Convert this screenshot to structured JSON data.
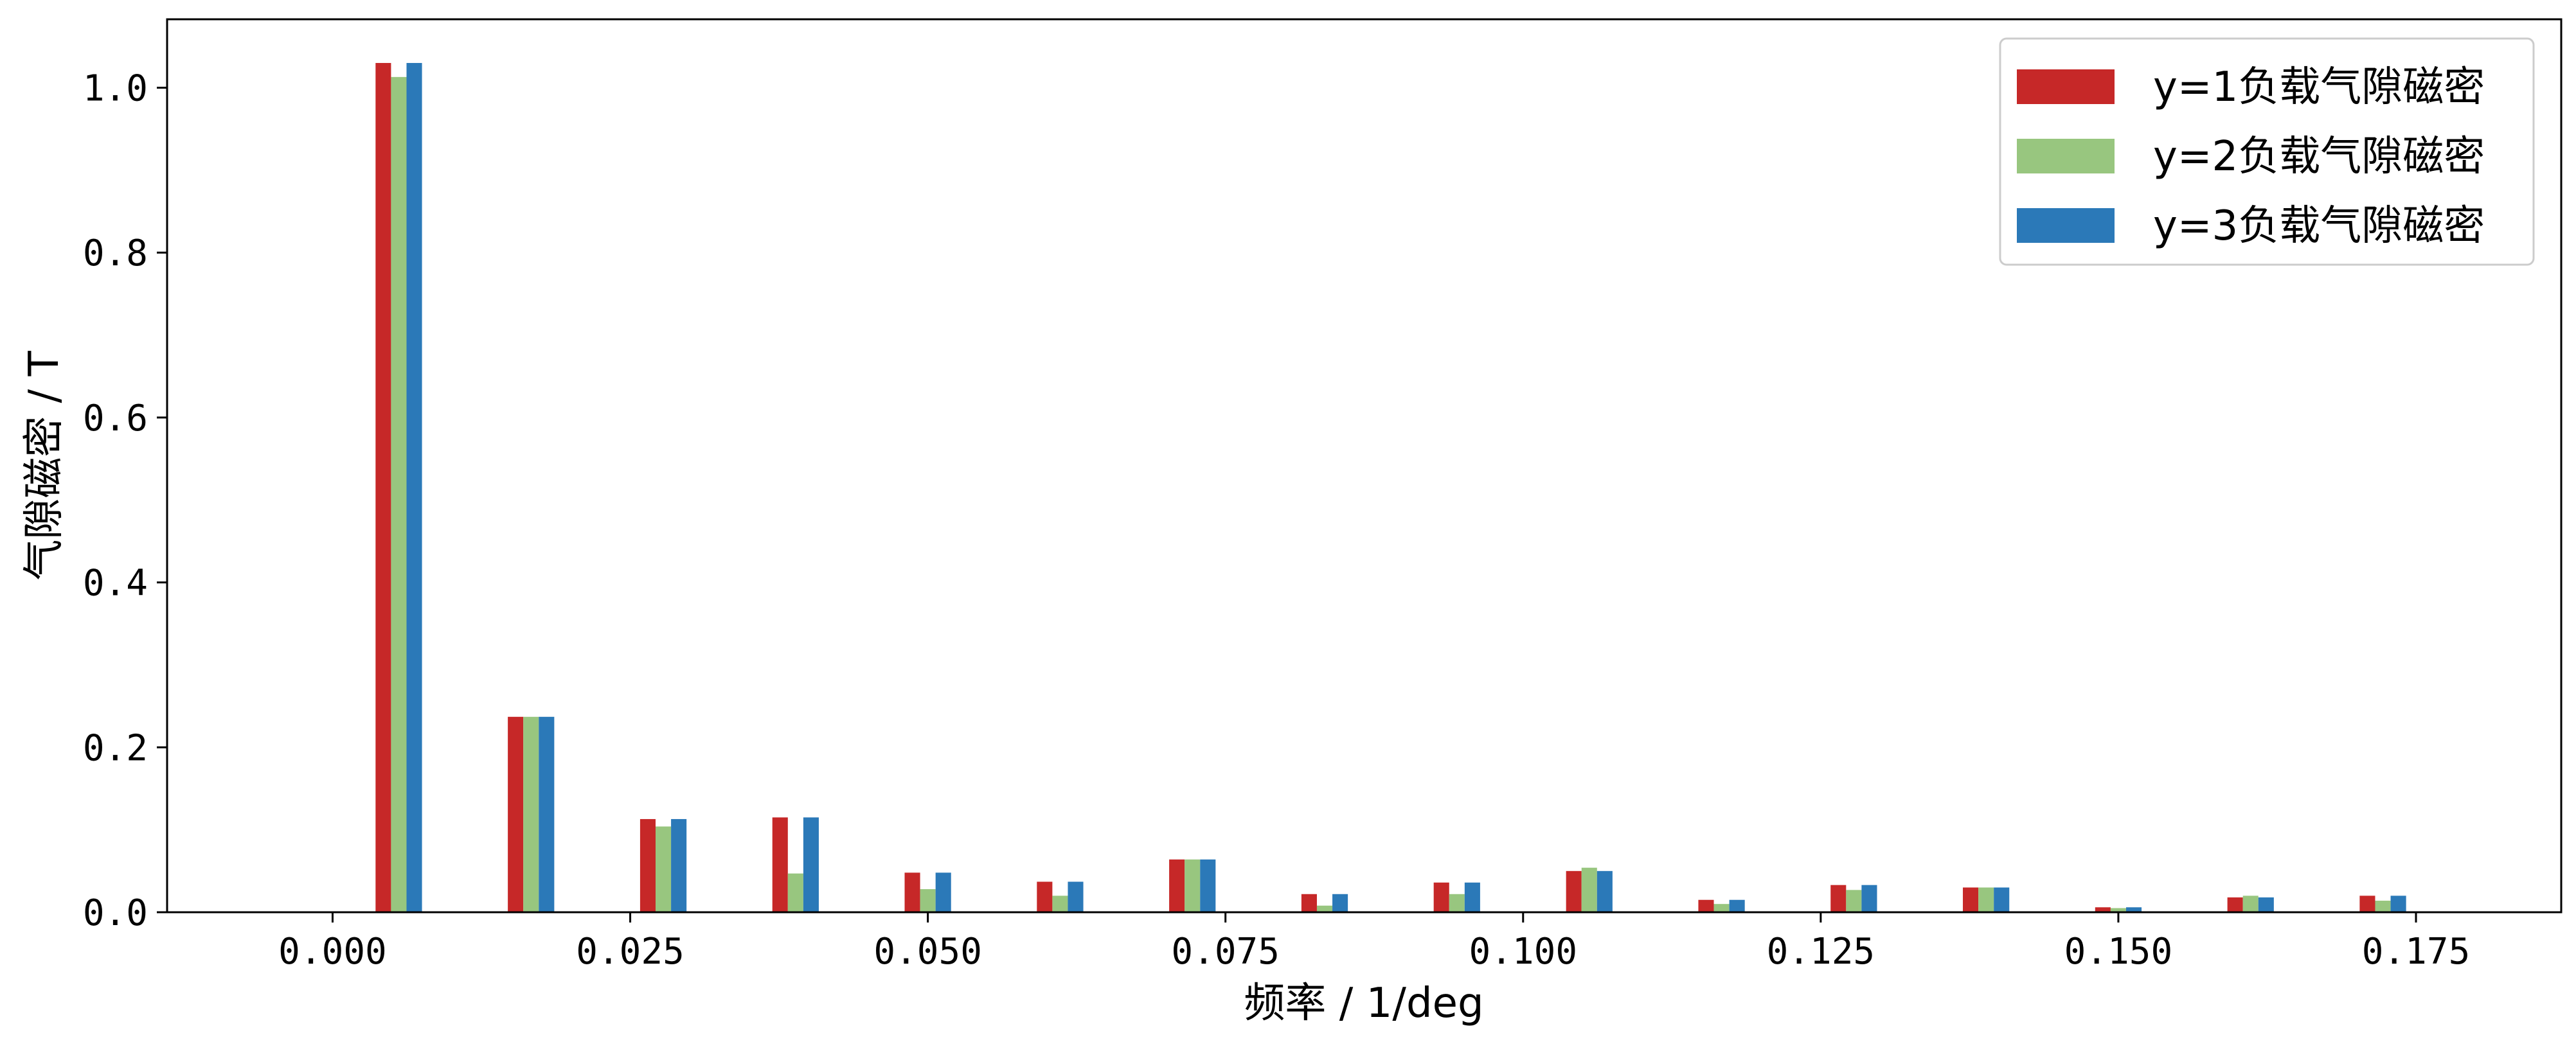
{
  "chart_data": {
    "type": "bar",
    "xlabel": "频率 / 1/deg",
    "ylabel": "气隙磁密 / T",
    "xlim": [
      -0.0139,
      0.1872
    ],
    "ylim": [
      0,
      1.083
    ],
    "xticks": [
      0.0,
      0.025,
      0.05,
      0.075,
      0.1,
      0.125,
      0.15,
      0.175
    ],
    "xtick_labels": [
      "0.000",
      "0.025",
      "0.050",
      "0.075",
      "0.100",
      "0.125",
      "0.150",
      "0.175"
    ],
    "yticks": [
      0.0,
      0.2,
      0.4,
      0.6,
      0.8,
      1.0
    ],
    "ytick_labels": [
      "0.0",
      "0.2",
      "0.4",
      "0.6",
      "0.8",
      "1.0"
    ],
    "x": [
      0.00556,
      0.01667,
      0.02778,
      0.03889,
      0.05,
      0.06111,
      0.07222,
      0.08333,
      0.09444,
      0.10556,
      0.11667,
      0.12778,
      0.13889,
      0.15,
      0.16111,
      0.17222
    ],
    "legend_position": "top-right",
    "grid": false,
    "series": [
      {
        "name": "y=1负载气隙磁密",
        "color": "#c62828",
        "values": [
          1.03,
          0.237,
          0.113,
          0.115,
          0.048,
          0.037,
          0.064,
          0.022,
          0.036,
          0.05,
          0.015,
          0.033,
          0.03,
          0.006,
          0.018,
          0.02
        ]
      },
      {
        "name": "y=2负载气隙磁密",
        "color": "#98c67f",
        "values": [
          1.013,
          0.237,
          0.104,
          0.047,
          0.028,
          0.02,
          0.064,
          0.008,
          0.022,
          0.054,
          0.01,
          0.027,
          0.03,
          0.005,
          0.02,
          0.014
        ]
      },
      {
        "name": "y=3负载气隙磁密",
        "color": "#2b79b8",
        "values": [
          1.03,
          0.237,
          0.113,
          0.115,
          0.048,
          0.037,
          0.064,
          0.022,
          0.036,
          0.05,
          0.015,
          0.033,
          0.03,
          0.006,
          0.018,
          0.02
        ]
      }
    ]
  }
}
